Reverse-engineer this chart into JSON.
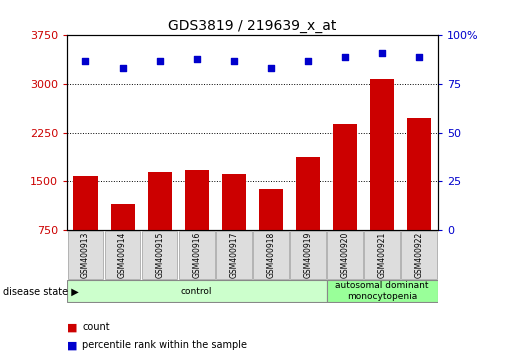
{
  "title": "GDS3819 / 219639_x_at",
  "samples": [
    "GSM400913",
    "GSM400914",
    "GSM400915",
    "GSM400916",
    "GSM400917",
    "GSM400918",
    "GSM400919",
    "GSM400920",
    "GSM400921",
    "GSM400922"
  ],
  "counts": [
    1580,
    1150,
    1640,
    1680,
    1620,
    1380,
    1870,
    2380,
    3080,
    2480
  ],
  "percentiles": [
    87,
    83,
    87,
    88,
    87,
    83,
    87,
    89,
    91,
    89
  ],
  "left_ylim": [
    750,
    3750
  ],
  "left_yticks": [
    750,
    1500,
    2250,
    3000,
    3750
  ],
  "right_ylim": [
    0,
    100
  ],
  "right_yticks": [
    0,
    25,
    50,
    75,
    100
  ],
  "right_yticklabels": [
    "0",
    "25",
    "50",
    "75",
    "100%"
  ],
  "bar_color": "#cc0000",
  "scatter_color": "#0000cc",
  "grid_color": "#000000",
  "disease_states": [
    {
      "label": "control",
      "start": 0,
      "end": 7,
      "color": "#ccffcc"
    },
    {
      "label": "autosomal dominant\nmonocytopenia",
      "start": 7,
      "end": 10,
      "color": "#99ff99"
    }
  ],
  "disease_state_label": "disease state",
  "legend_items": [
    {
      "color": "#cc0000",
      "label": "count"
    },
    {
      "color": "#0000cc",
      "label": "percentile rank within the sample"
    }
  ],
  "bar_color_left": "#cc0000",
  "ylabel_right_color": "#0000cc",
  "bar_width": 0.65,
  "background_color": "#ffffff",
  "tick_label_bg": "#dddddd",
  "bar_bottom": 750
}
